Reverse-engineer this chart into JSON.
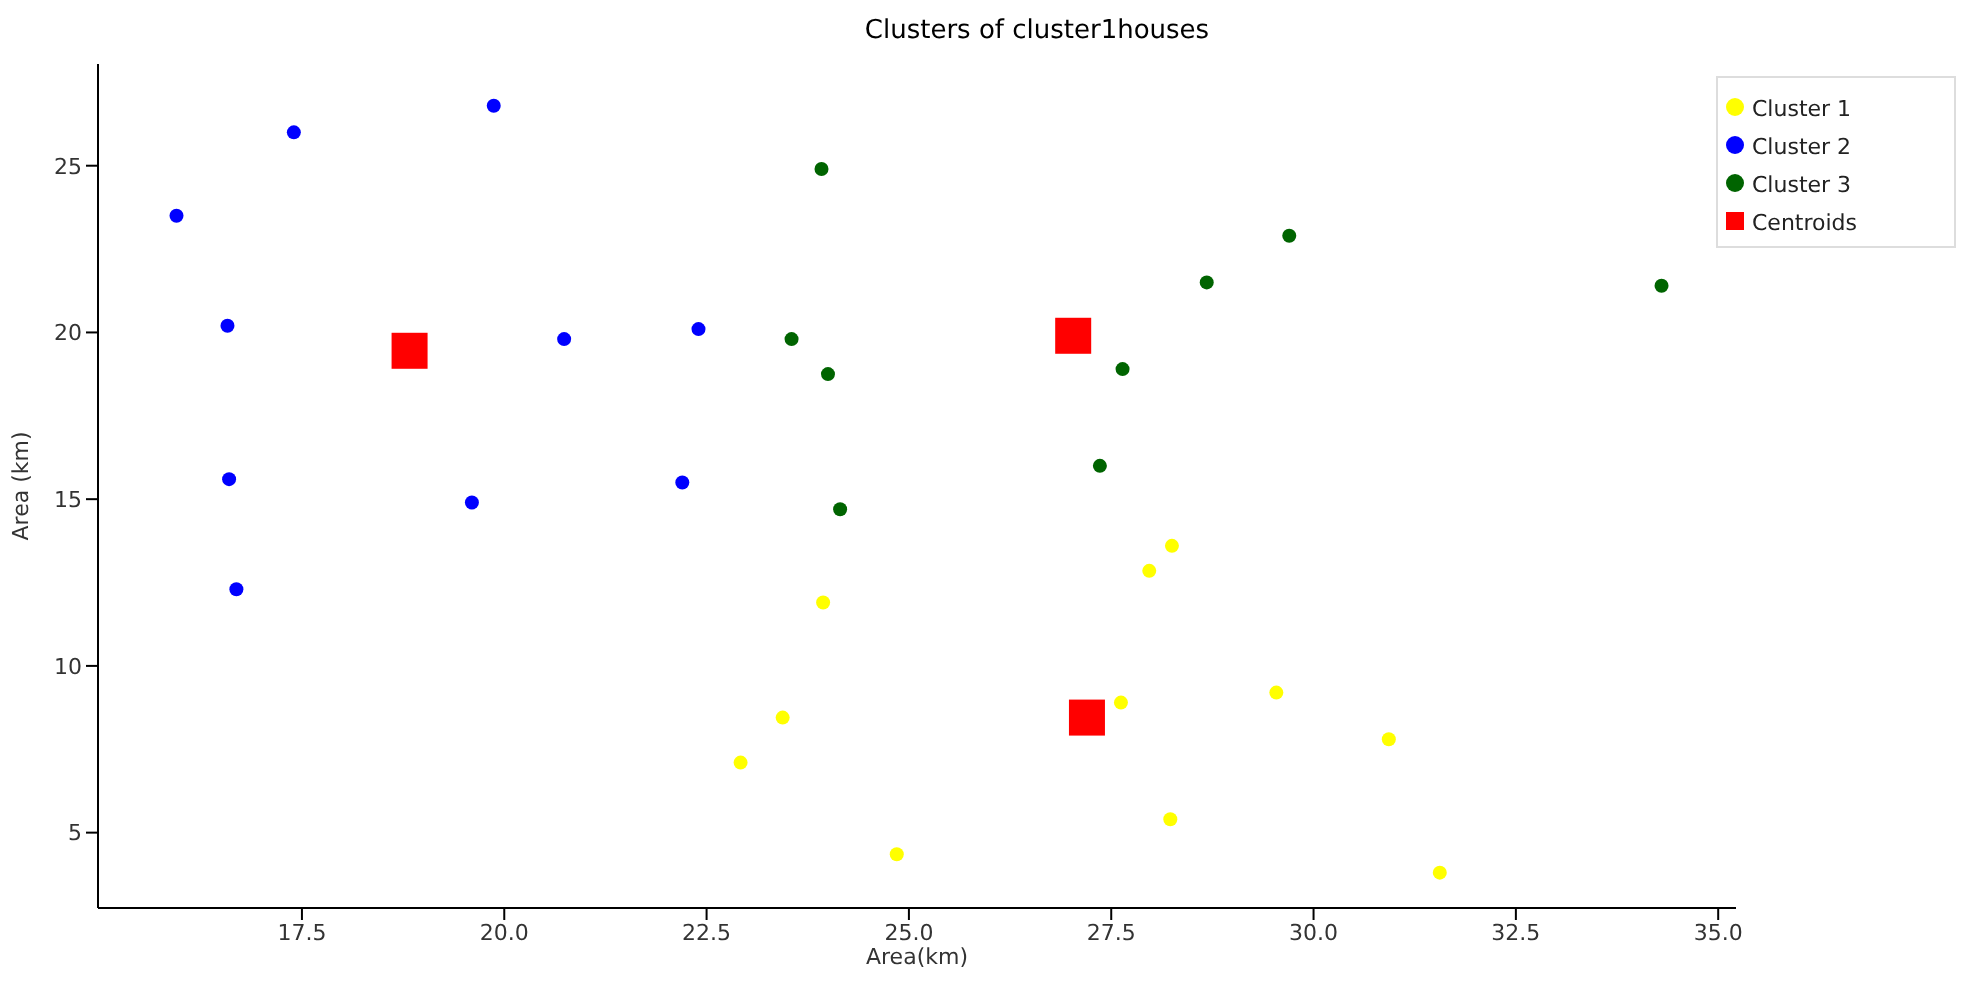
{
  "chart_data": {
    "type": "scatter",
    "title": "Clusters of cluster1houses",
    "xlabel": "Area(km)",
    "ylabel": "Area (km)",
    "xlim": [
      14.98,
      35.22
    ],
    "ylim": [
      2.74,
      28.05
    ],
    "xticks": [
      17.5,
      {
        "value": 20,
        "label": "20.0"
      },
      22.5,
      {
        "value": 25,
        "label": "25.0"
      },
      27.5,
      {
        "value": 30,
        "label": "30.0"
      },
      32.5,
      {
        "value": 35,
        "label": "35.0"
      }
    ],
    "yticks": [
      5,
      10,
      15,
      20,
      25
    ],
    "legend": "top right",
    "grid": false,
    "series": [
      {
        "name": "Cluster 1",
        "color": "#ffff00",
        "marker": "circle",
        "x": [
          23.94,
          23.44,
          22.92,
          24.85,
          27.62,
          28.25,
          27.97,
          29.54,
          30.93,
          28.23,
          31.56
        ],
        "values": [
          11.9,
          8.45,
          7.1,
          4.35,
          8.9,
          13.6,
          12.85,
          9.2,
          7.8,
          5.4,
          3.8
        ]
      },
      {
        "name": "Cluster 2",
        "color": "#0000ff",
        "marker": "circle",
        "x": [
          15.95,
          17.4,
          19.87,
          16.58,
          16.6,
          16.69,
          19.6,
          20.74,
          22.4,
          22.2
        ],
        "values": [
          23.5,
          26.0,
          26.8,
          20.2,
          15.6,
          12.3,
          14.9,
          19.8,
          20.1,
          15.5
        ]
      },
      {
        "name": "Cluster 3",
        "color": "#006400",
        "marker": "circle",
        "x": [
          23.92,
          23.55,
          24.0,
          24.15,
          28.68,
          29.7,
          27.64,
          27.36,
          34.3
        ],
        "values": [
          24.9,
          19.8,
          18.75,
          14.7,
          21.5,
          22.9,
          18.9,
          16.0,
          21.4
        ]
      },
      {
        "name": "Centroids",
        "color": "#ff0000",
        "marker": "square",
        "x": [
          18.83,
          27.03,
          27.2
        ],
        "values": [
          19.45,
          19.9,
          8.45
        ]
      }
    ]
  }
}
